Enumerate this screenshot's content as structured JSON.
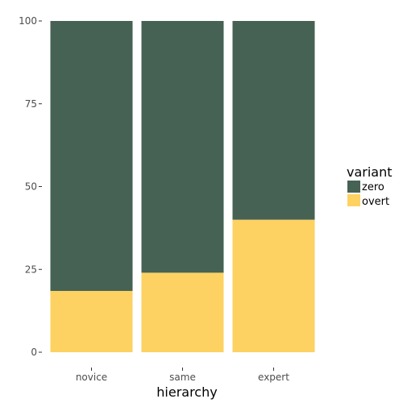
{
  "chart_data": {
    "type": "bar",
    "stacked": true,
    "xlabel": "hierarchy",
    "ylabel": "",
    "categories": [
      "novice",
      "same",
      "expert"
    ],
    "series": [
      {
        "name": "zero",
        "values": [
          81.5,
          76,
          60
        ],
        "color": "#466254"
      },
      {
        "name": "overt",
        "values": [
          18.5,
          24,
          40
        ],
        "color": "#fdd262"
      }
    ],
    "ylim": [
      0,
      100
    ],
    "yticks": [
      "0",
      "25",
      "50",
      "75",
      "100"
    ],
    "grid": false,
    "legend": {
      "title": "variant",
      "position": "right",
      "entries": [
        "zero",
        "overt"
      ]
    }
  }
}
